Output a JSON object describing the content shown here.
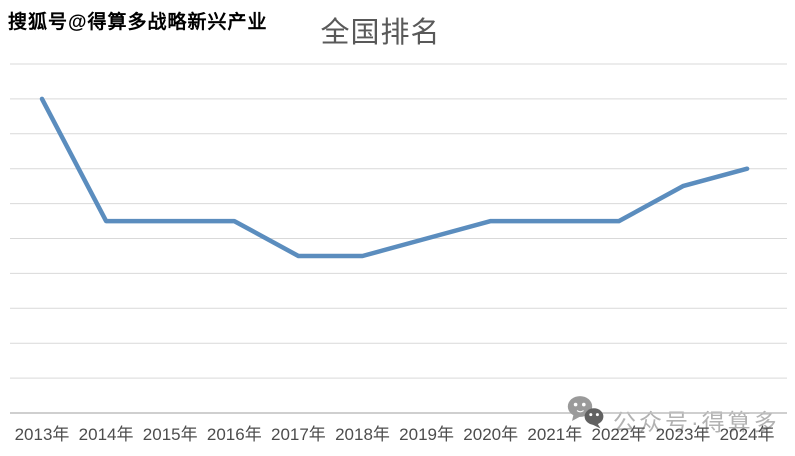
{
  "watermarks": {
    "sohu": "搜狐号@得算多战略新兴产业",
    "wechat_label": "公众号·得算多"
  },
  "chart_data": {
    "type": "line",
    "title": "全国排名",
    "categories": [
      "2013年",
      "2014年",
      "2015年",
      "2016年",
      "2017年",
      "2018年",
      "2019年",
      "2020年",
      "2021年",
      "2022年",
      "2023年",
      "2024年"
    ],
    "series": [
      {
        "name": "全国排名",
        "values": [
          2,
          9,
          9,
          9,
          11,
          11,
          10,
          9,
          9,
          9,
          7,
          6
        ]
      }
    ],
    "xlabel": "",
    "ylabel": "",
    "ylim": [
      0,
      20
    ],
    "y_axis_reversed": true,
    "y_gridline_step": 2,
    "y_tick_labels_visible": false,
    "grid": "horizontal",
    "legend_position": "none",
    "colors": {
      "line": "#5B8DBE",
      "gridline": "#D9D9D9",
      "axis_line": "#BFBFBF",
      "title_text": "#595959",
      "tick_text": "#4D4D4D",
      "watermark_text": "#B2B2B2"
    }
  }
}
